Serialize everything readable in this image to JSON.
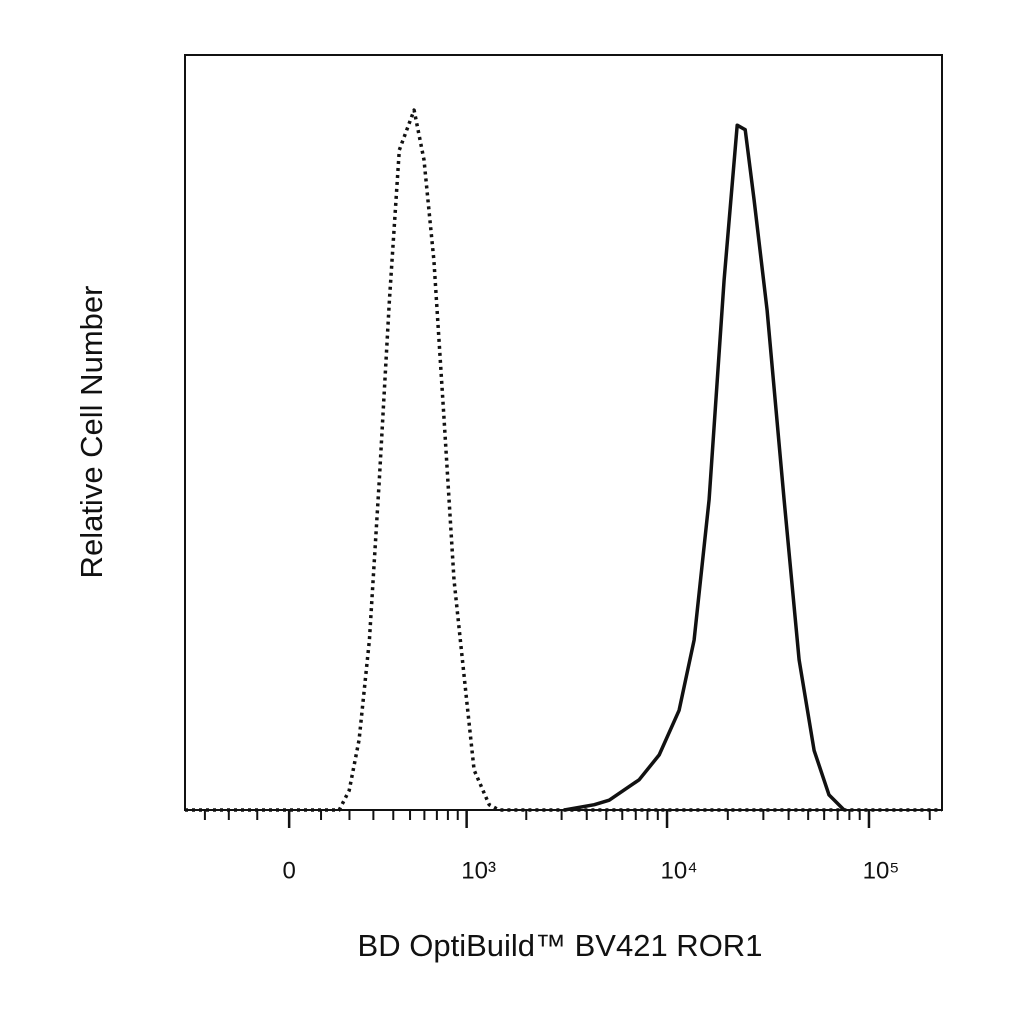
{
  "chart_data": {
    "type": "line",
    "x_scale": "biexponential",
    "x_label": "BD OptiBuild™ BV421 ROR1",
    "y_label": "Relative Cell Number",
    "xlim": [
      -400,
      230000
    ],
    "ylim": [
      0,
      100
    ],
    "xticks": [
      0,
      {
        "value": 1000,
        "label": "10³"
      },
      {
        "value": 10000,
        "label": "10⁴"
      },
      {
        "value": 100000,
        "label": "10⁵"
      }
    ],
    "minor_xticks": [
      -300,
      -200,
      -100,
      100,
      200,
      300,
      400,
      500,
      600,
      700,
      800,
      900,
      2000,
      3000,
      4000,
      5000,
      6000,
      7000,
      8000,
      9000,
      20000,
      30000,
      40000,
      50000,
      60000,
      70000,
      80000,
      90000,
      200000
    ],
    "series": [
      {
        "color": "#111111",
        "style": "dotted",
        "x": [
          -400,
          100,
          162,
          199,
          238,
          282,
          328,
          379,
          434,
          527,
          597,
          675,
          764,
          861,
          1000,
          1092,
          1302,
          1461,
          230000
        ],
        "values": [
          0,
          0,
          0,
          2.6,
          9.3,
          22.5,
          43.7,
          67.5,
          87.4,
          92.7,
          86.1,
          72.8,
          51.7,
          30.5,
          14.6,
          5.3,
          0.7,
          0,
          0
        ]
      },
      {
        "color": "#111111",
        "style": "solid",
        "x": [
          3096,
          4360,
          5170,
          7270,
          9140,
          11480,
          13610,
          16160,
          19170,
          22250,
          24380,
          27000,
          31300,
          38000,
          45100,
          53500,
          63400,
          75300
        ],
        "values": [
          0,
          0.7,
          1.3,
          4.0,
          7.3,
          13.2,
          22.5,
          41.1,
          70.2,
          90.7,
          90.1,
          80.8,
          66.2,
          41.1,
          19.9,
          7.9,
          2.0,
          0
        ]
      }
    ]
  }
}
